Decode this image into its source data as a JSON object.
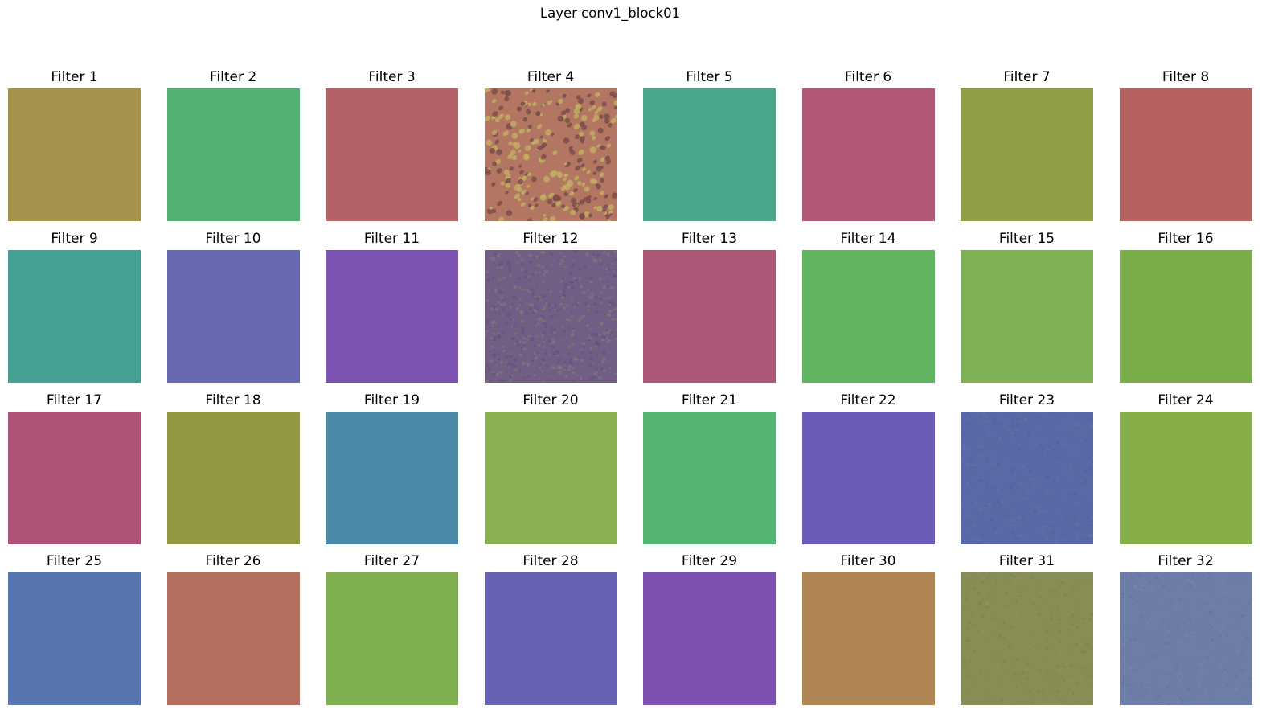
{
  "figure": {
    "title": "Layer conv1_block01"
  },
  "filters": [
    {
      "label": "Filter 1",
      "color": "#a4934a",
      "texture": "smooth"
    },
    {
      "label": "Filter 2",
      "color": "#52b275",
      "texture": "smooth"
    },
    {
      "label": "Filter 3",
      "color": "#b56168",
      "texture": "smooth"
    },
    {
      "label": "Filter 4",
      "color": "#b27662",
      "texture": "speckled",
      "accent": "#bfae62",
      "shade": "#7d4e4a"
    },
    {
      "label": "Filter 5",
      "color": "#49a88b",
      "texture": "smooth"
    },
    {
      "label": "Filter 6",
      "color": "#b05874",
      "texture": "smooth"
    },
    {
      "label": "Filter 7",
      "color": "#8fa044",
      "texture": "smooth"
    },
    {
      "label": "Filter 8",
      "color": "#b46160",
      "texture": "smooth"
    },
    {
      "label": "Filter 9",
      "color": "#45a094",
      "texture": "smooth"
    },
    {
      "label": "Filter 10",
      "color": "#676ab3",
      "texture": "smooth"
    },
    {
      "label": "Filter 11",
      "color": "#7a53b3",
      "texture": "smooth"
    },
    {
      "label": "Filter 12",
      "color": "#725e84",
      "texture": "noisy",
      "accent": "#8a7a76",
      "shade": "#5e4f85"
    },
    {
      "label": "Filter 13",
      "color": "#ae5879",
      "texture": "smooth"
    },
    {
      "label": "Filter 14",
      "color": "#61b561",
      "texture": "smooth"
    },
    {
      "label": "Filter 15",
      "color": "#7db153",
      "texture": "smooth"
    },
    {
      "label": "Filter 16",
      "color": "#78ad47",
      "texture": "smooth"
    },
    {
      "label": "Filter 17",
      "color": "#ae5378",
      "texture": "smooth"
    },
    {
      "label": "Filter 18",
      "color": "#919841",
      "texture": "smooth"
    },
    {
      "label": "Filter 19",
      "color": "#4a8aa6",
      "texture": "smooth"
    },
    {
      "label": "Filter 20",
      "color": "#8aae52",
      "texture": "smooth"
    },
    {
      "label": "Filter 21",
      "color": "#53b570",
      "texture": "smooth"
    },
    {
      "label": "Filter 22",
      "color": "#6b5db7",
      "texture": "smooth"
    },
    {
      "label": "Filter 23",
      "color": "#5b68a6",
      "texture": "grainy",
      "accent": "#6d77ad",
      "shade": "#4f5b98"
    },
    {
      "label": "Filter 24",
      "color": "#86ad48",
      "texture": "smooth"
    },
    {
      "label": "Filter 25",
      "color": "#5776b1",
      "texture": "smooth"
    },
    {
      "label": "Filter 26",
      "color": "#b46f5f",
      "texture": "smooth"
    },
    {
      "label": "Filter 27",
      "color": "#7faf4f",
      "texture": "smooth"
    },
    {
      "label": "Filter 28",
      "color": "#6862b5",
      "texture": "smooth"
    },
    {
      "label": "Filter 29",
      "color": "#7d51b2",
      "texture": "smooth"
    },
    {
      "label": "Filter 30",
      "color": "#b08554",
      "texture": "smooth"
    },
    {
      "label": "Filter 31",
      "color": "#888c55",
      "texture": "grainy",
      "accent": "#9a9560",
      "shade": "#767d4e"
    },
    {
      "label": "Filter 32",
      "color": "#6e7ca8",
      "texture": "grainy",
      "accent": "#808aae",
      "shade": "#626f9c"
    }
  ]
}
